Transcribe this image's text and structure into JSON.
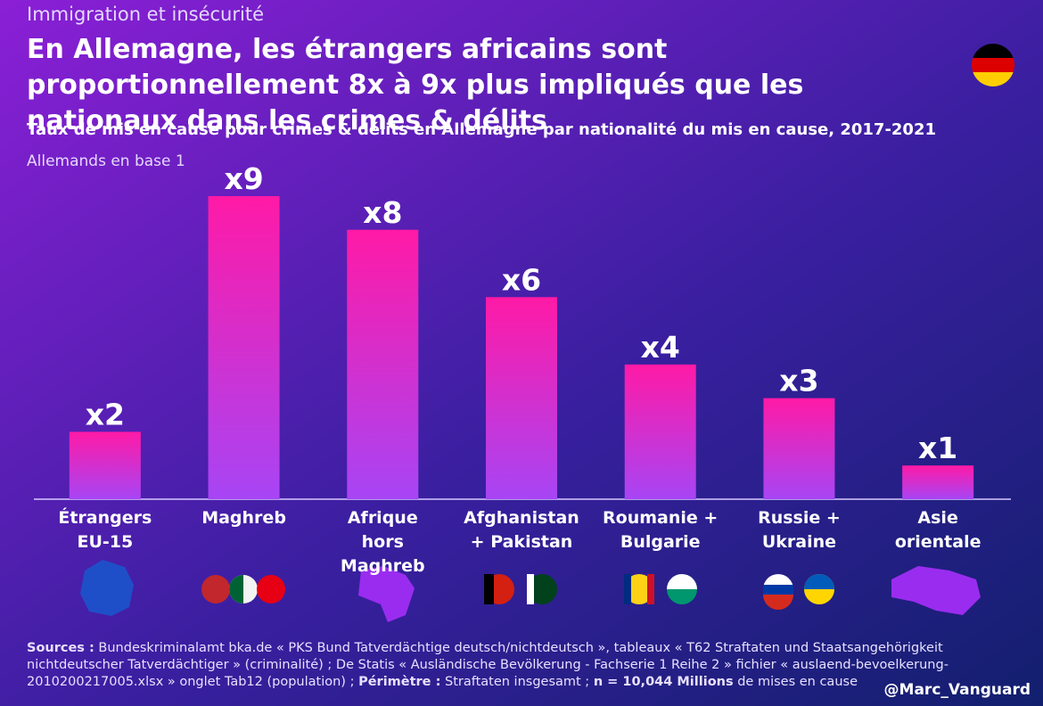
{
  "chart_data": {
    "type": "bar",
    "kicker": "Immigration et insécurité",
    "title": "En Allemagne, les étrangers africains sont proportionnellement 8x à 9x plus impliqués que les nationaux dans les crimes & délits",
    "subtitle": "Taux de mis en cause pour crimes & délits en Allemagne par nationalité du mis en cause, 2017-2021",
    "note": "Allemands en base 1",
    "categories": [
      "Étrangers EU-15",
      "Maghreb",
      "Afrique hors Maghreb",
      "Afghanistan + Pakistan",
      "Roumanie + Bulgarie",
      "Russie + Ukraine",
      "Asie orientale"
    ],
    "values": [
      2,
      9,
      8,
      6,
      4,
      3,
      1
    ],
    "value_labels": [
      "x2",
      "x9",
      "x8",
      "x6",
      "x4",
      "x3",
      "x1"
    ],
    "gradient": [
      "#ff1aa6",
      "#a745f5"
    ],
    "footer": {
      "sources_label": "Sources :",
      "sources_text": "Bundeskriminalamt bka.de « PKS Bund Tatverdächtige deutsch/nichtdeutsch », tableaux « T62 Straftaten und Staatsangehörigkeit nichtdeutscher Tatverdächtiger » (criminalité) ; De Statis « Ausländische Bevölkerung - Fachserie 1 Reihe 2 » fichier « auslaend-bevoelkerung-2010200217005.xlsx » onglet Tab12 (population) ;",
      "perimetre_label": "Périmètre :",
      "perimetre_text": "Straftaten insgesamt ;",
      "n_label": "n = 10,044 Millions",
      "n_text": "de mises en cause"
    },
    "handle": "@Marc_Vanguard"
  }
}
